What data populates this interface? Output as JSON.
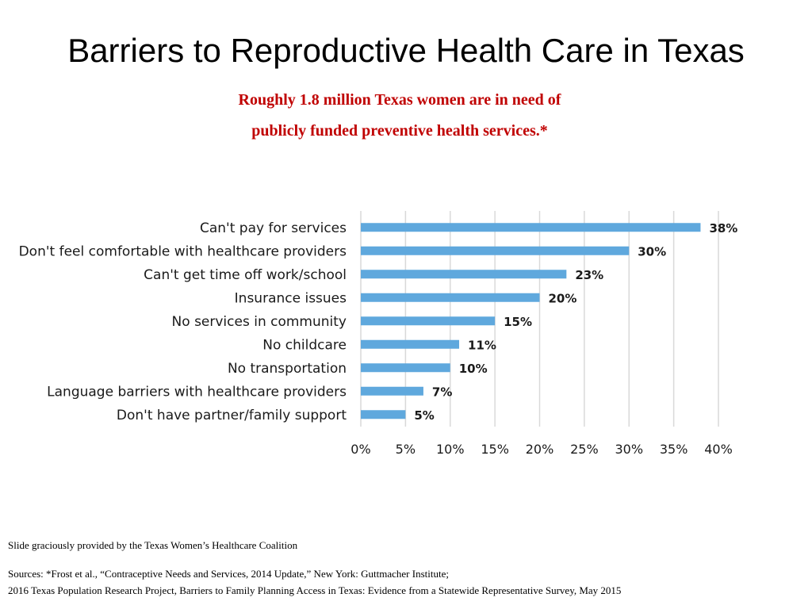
{
  "slide": {
    "title": "Barriers to Reproductive Health Care in Texas",
    "subtitle_line1": "Roughly 1.8 million Texas women are in need of",
    "subtitle_line2": "publicly funded preventive health services.*",
    "subtitle_color": "#c00000",
    "credit": "Slide graciously provided by the Texas Women’s Healthcare Coalition",
    "sources_line1": "Sources: *Frost et al., “Contraceptive Needs and Services, 2014 Update,” New York: Guttmacher Institute;",
    "sources_line2": "2016 Texas Population Research Project, Barriers to Family Planning Access in Texas: Evidence from a Statewide Representative Survey, May 2015"
  },
  "chart_data": {
    "type": "bar",
    "orientation": "horizontal",
    "categories": [
      "Can't pay for services",
      "Don't feel comfortable with healthcare providers",
      "Can't get time off work/school",
      "Insurance issues",
      "No services in community",
      "No childcare",
      "No transportation",
      "Language barriers with healthcare providers",
      "Don't have partner/family support"
    ],
    "values": [
      38,
      30,
      23,
      20,
      15,
      11,
      10,
      7,
      5
    ],
    "data_labels": [
      "38%",
      "30%",
      "23%",
      "20%",
      "15%",
      "11%",
      "10%",
      "7%",
      "5%"
    ],
    "xlim": [
      0,
      40
    ],
    "x_ticks": [
      0,
      5,
      10,
      15,
      20,
      25,
      30,
      35,
      40
    ],
    "x_tick_labels": [
      "0%",
      "5%",
      "10%",
      "15%",
      "20%",
      "25%",
      "30%",
      "35%",
      "40%"
    ],
    "grid": true,
    "legend": "none",
    "bar_color": "#5fa8dd",
    "grid_color": "#d9d9d9",
    "text_color": "#1a1a1a"
  }
}
